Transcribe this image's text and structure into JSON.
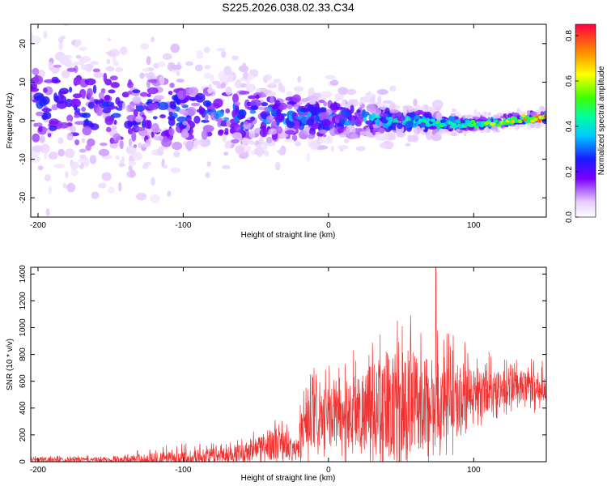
{
  "title": "S225.2026.038.02.33.C34",
  "chart_data": [
    {
      "type": "heatmap",
      "name": "spectrogram",
      "xlabel": "Height of straight line (km)",
      "ylabel": "Frequency (Hz)",
      "xlim": [
        -205,
        150
      ],
      "ylim": [
        -25,
        25
      ],
      "xticks": [
        -200,
        -100,
        0,
        100
      ],
      "yticks": [
        -20,
        -10,
        0,
        10,
        20
      ],
      "xtick_labels": [
        "-200",
        "-100",
        "0",
        "100"
      ],
      "ytick_labels": [
        "-20",
        "-10",
        "0",
        "10",
        "20"
      ],
      "colorbar": {
        "label": "Normalized spectral amplitude",
        "range": [
          0.0,
          0.85
        ],
        "ticks": [
          0.0,
          0.2,
          0.4,
          0.6,
          0.8
        ],
        "tick_labels": [
          "0.0",
          "0.2",
          "0.4",
          "0.6",
          "0.8"
        ]
      },
      "ridge": {
        "description_points_x_km": [
          -200,
          -150,
          -100,
          -50,
          0,
          50,
          100,
          150
        ],
        "center_freq_hz": [
          4,
          3,
          2,
          1.5,
          0.5,
          0,
          -1,
          1
        ],
        "spread_hz": [
          22,
          20,
          15,
          12,
          8,
          5,
          2.5,
          2
        ],
        "peak_amplitude": [
          0.3,
          0.3,
          0.32,
          0.35,
          0.4,
          0.45,
          0.55,
          0.85
        ]
      }
    },
    {
      "type": "line",
      "name": "snr",
      "xlabel": "Height of straight line (km)",
      "ylabel": "SNR (10 * v/v)",
      "xlim": [
        -205,
        150
      ],
      "ylim": [
        0,
        1450
      ],
      "xticks": [
        -200,
        -100,
        0,
        100
      ],
      "yticks": [
        0,
        200,
        400,
        600,
        800,
        1000,
        1200,
        1400
      ],
      "xtick_labels": [
        "-200",
        "-100",
        "0",
        "100"
      ],
      "ytick_labels": [
        "0",
        "200",
        "400",
        "600",
        "800",
        "1000",
        "1200",
        "1400"
      ],
      "color": "#ee3333",
      "envelope": {
        "x_km": [
          -205,
          -150,
          -110,
          -80,
          -60,
          -45,
          -38,
          -30,
          -22,
          -18,
          -10,
          0,
          20,
          40,
          60,
          80,
          100,
          120,
          150
        ],
        "median": [
          15,
          15,
          20,
          40,
          70,
          110,
          140,
          120,
          60,
          250,
          300,
          330,
          380,
          420,
          430,
          470,
          520,
          550,
          560
        ],
        "max": [
          50,
          45,
          130,
          150,
          180,
          300,
          370,
          320,
          180,
          650,
          700,
          720,
          900,
          1130,
          1100,
          1000,
          880,
          800,
          750
        ]
      },
      "spike": {
        "x": 74,
        "y": 1450
      }
    }
  ]
}
